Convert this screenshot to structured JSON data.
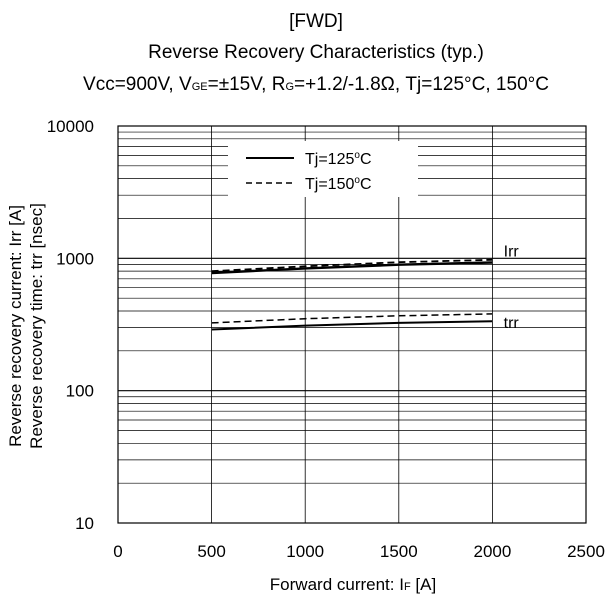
{
  "chart_data": {
    "type": "line",
    "title": "[FWD]",
    "subtitle": "Reverse Recovery Characteristics (typ.)",
    "conditions": {
      "vcc": "Vcc=900V, ",
      "vge_main": "V",
      "vge_sub": "GE",
      "vge_rest": "=±15V, ",
      "rg_main": "R",
      "rg_sub": "G",
      "rg_rest": "=+1.2/-1.8Ω, Tj=125°C, 150°C"
    },
    "xlabel": {
      "main": "Forward current: I",
      "sub": "F",
      "rest": " [A]"
    },
    "ylabel": [
      "Reverse recovery current: Irr [A]",
      "Reverse recovery time: trr [nsec]"
    ],
    "xlim": [
      0,
      2500
    ],
    "ylim": [
      10,
      10000
    ],
    "yscale": "log",
    "grid": true,
    "x_ticks": [
      0,
      500,
      1000,
      1500,
      2000,
      2500
    ],
    "y_ticks": [
      10,
      100,
      1000,
      10000
    ],
    "legend_position": "top-center",
    "legend": [
      {
        "text": "Tj=125",
        "deg": "o",
        "unit": "C",
        "style": "solid"
      },
      {
        "text": "Tj=150",
        "deg": "o",
        "unit": "C",
        "style": "dashed"
      }
    ],
    "annotations": [
      {
        "text": "Irr",
        "x": 2060,
        "y": 1150
      },
      {
        "text": "trr",
        "x": 2060,
        "y": 330
      }
    ],
    "series": [
      {
        "x": [
          500,
          1000,
          1500,
          2000
        ],
        "values": [
          775,
          840,
          895,
          930
        ],
        "style": "solid",
        "width": 2.4
      },
      {
        "x": [
          500,
          1000,
          1500,
          2000
        ],
        "values": [
          800,
          870,
          935,
          975
        ],
        "style": "dashed",
        "width": 1.8
      },
      {
        "x": [
          500,
          1000,
          1500,
          2000
        ],
        "values": [
          290,
          310,
          325,
          335
        ],
        "style": "solid",
        "width": 2.0
      },
      {
        "x": [
          500,
          1000,
          1500,
          2000
        ],
        "values": [
          325,
          350,
          368,
          380
        ],
        "style": "dashed",
        "width": 1.5
      }
    ]
  }
}
